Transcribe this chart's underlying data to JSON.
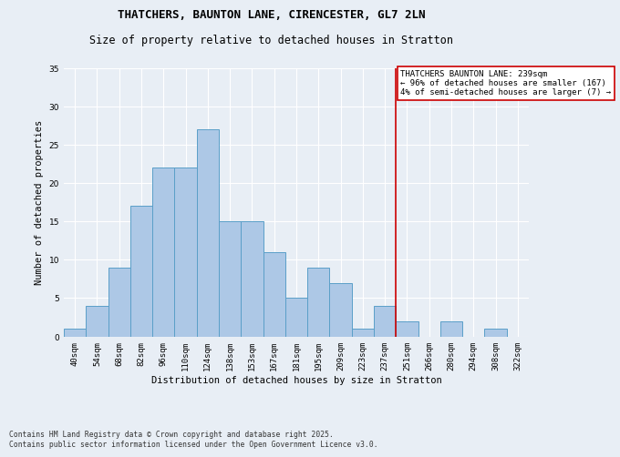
{
  "title": "THATCHERS, BAUNTON LANE, CIRENCESTER, GL7 2LN",
  "subtitle": "Size of property relative to detached houses in Stratton",
  "xlabel": "Distribution of detached houses by size in Stratton",
  "ylabel": "Number of detached properties",
  "footer_line1": "Contains HM Land Registry data © Crown copyright and database right 2025.",
  "footer_line2": "Contains public sector information licensed under the Open Government Licence v3.0.",
  "bin_labels": [
    "40sqm",
    "54sqm",
    "68sqm",
    "82sqm",
    "96sqm",
    "110sqm",
    "124sqm",
    "138sqm",
    "153sqm",
    "167sqm",
    "181sqm",
    "195sqm",
    "209sqm",
    "223sqm",
    "237sqm",
    "251sqm",
    "266sqm",
    "280sqm",
    "294sqm",
    "308sqm",
    "322sqm"
  ],
  "bar_values": [
    1,
    4,
    9,
    17,
    22,
    22,
    27,
    15,
    15,
    11,
    5,
    9,
    7,
    1,
    4,
    2,
    0,
    2,
    0,
    1,
    0
  ],
  "bar_color": "#adc8e6",
  "bar_edge_color": "#5a9fc8",
  "reference_line_x": 14.5,
  "reference_line_label": "THATCHERS BAUNTON LANE: 239sqm",
  "annotation_line1": "← 96% of detached houses are smaller (167)",
  "annotation_line2": "4% of semi-detached houses are larger (7) →",
  "annotation_box_color": "#ffffff",
  "annotation_border_color": "#cc0000",
  "ref_line_color": "#cc0000",
  "ylim": [
    0,
    35
  ],
  "yticks": [
    0,
    5,
    10,
    15,
    20,
    25,
    30,
    35
  ],
  "background_color": "#e8eef5",
  "grid_color": "#ffffff",
  "title_fontsize": 9,
  "subtitle_fontsize": 8.5,
  "axis_label_fontsize": 7.5,
  "tick_fontsize": 6.5,
  "annotation_fontsize": 6.5,
  "footer_fontsize": 5.8
}
